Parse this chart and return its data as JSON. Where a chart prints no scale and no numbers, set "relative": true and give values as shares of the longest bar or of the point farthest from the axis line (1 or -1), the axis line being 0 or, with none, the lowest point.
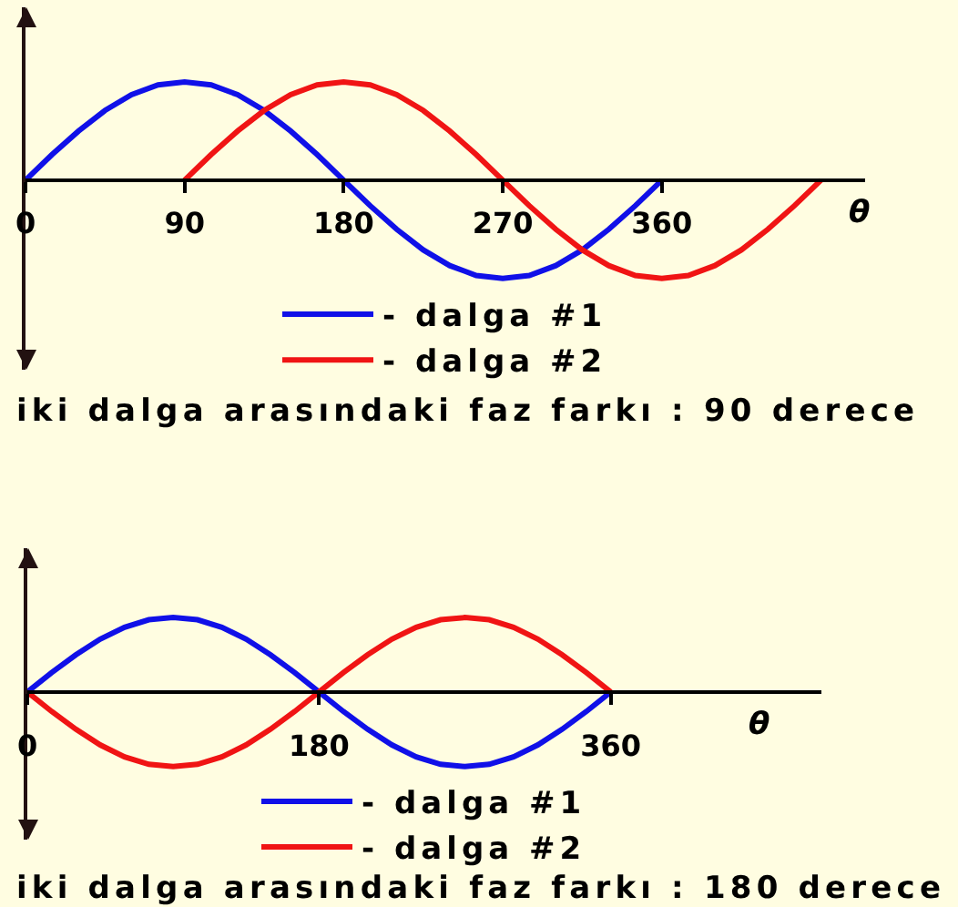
{
  "chart_data": [
    {
      "type": "line",
      "relative": true,
      "xlabel": "θ",
      "xlim": [
        0,
        475
      ],
      "xticks": [
        0,
        90,
        180,
        270,
        360
      ],
      "legend": "bottom",
      "line_style": "solid",
      "series": [
        {
          "name": "- dalga #1",
          "color": "#1010e8",
          "x": [
            0,
            15,
            30,
            45,
            60,
            75,
            90,
            105,
            120,
            135,
            150,
            165,
            180,
            195,
            210,
            225,
            240,
            255,
            270,
            285,
            300,
            315,
            330,
            345,
            360
          ],
          "values": [
            0,
            0.26,
            0.5,
            0.71,
            0.87,
            0.97,
            1,
            0.97,
            0.87,
            0.71,
            0.5,
            0.26,
            0,
            -0.26,
            -0.5,
            -0.71,
            -0.87,
            -0.97,
            -1,
            -0.97,
            -0.87,
            -0.71,
            -0.5,
            -0.26,
            0
          ]
        },
        {
          "name": "- dalga #2",
          "color": "#f01414",
          "x": [
            90,
            105,
            120,
            135,
            150,
            165,
            180,
            195,
            210,
            225,
            240,
            255,
            270,
            285,
            300,
            315,
            330,
            345,
            360,
            375,
            390,
            405,
            420,
            435,
            450
          ],
          "values": [
            0,
            0.26,
            0.5,
            0.71,
            0.87,
            0.97,
            1,
            0.97,
            0.87,
            0.71,
            0.5,
            0.26,
            0,
            -0.26,
            -0.5,
            -0.71,
            -0.87,
            -0.97,
            -1,
            -0.97,
            -0.87,
            -0.71,
            -0.5,
            -0.26,
            0
          ]
        }
      ],
      "annotations": [
        "iki dalga arasındaki faz farkı : 90 derece"
      ]
    },
    {
      "type": "line",
      "relative": true,
      "xlabel": "θ",
      "xlim": [
        0,
        490
      ],
      "xticks": [
        0,
        180,
        360
      ],
      "legend": "bottom",
      "line_style": "solid",
      "series": [
        {
          "name": "- dalga #1",
          "color": "#1010e8",
          "x": [
            0,
            15,
            30,
            45,
            60,
            75,
            90,
            105,
            120,
            135,
            150,
            165,
            180,
            195,
            210,
            225,
            240,
            255,
            270,
            285,
            300,
            315,
            330,
            345,
            360
          ],
          "values": [
            0,
            0.26,
            0.5,
            0.71,
            0.87,
            0.97,
            1,
            0.97,
            0.87,
            0.71,
            0.5,
            0.26,
            0,
            -0.26,
            -0.5,
            -0.71,
            -0.87,
            -0.97,
            -1,
            -0.97,
            -0.87,
            -0.71,
            -0.5,
            -0.26,
            0
          ]
        },
        {
          "name": "- dalga #2",
          "color": "#f01414",
          "x": [
            0,
            15,
            30,
            45,
            60,
            75,
            90,
            105,
            120,
            135,
            150,
            165,
            180,
            195,
            210,
            225,
            240,
            255,
            270,
            285,
            300,
            315,
            330,
            345,
            360
          ],
          "values": [
            0,
            -0.26,
            -0.5,
            -0.71,
            -0.87,
            -0.97,
            -1,
            -0.97,
            -0.87,
            -0.71,
            -0.5,
            -0.26,
            0,
            0.26,
            0.5,
            0.71,
            0.87,
            0.97,
            1,
            0.97,
            0.87,
            0.71,
            0.5,
            0.26,
            0
          ]
        }
      ],
      "annotations": [
        "iki dalga arasındaki faz farkı : 180 derece"
      ]
    }
  ]
}
